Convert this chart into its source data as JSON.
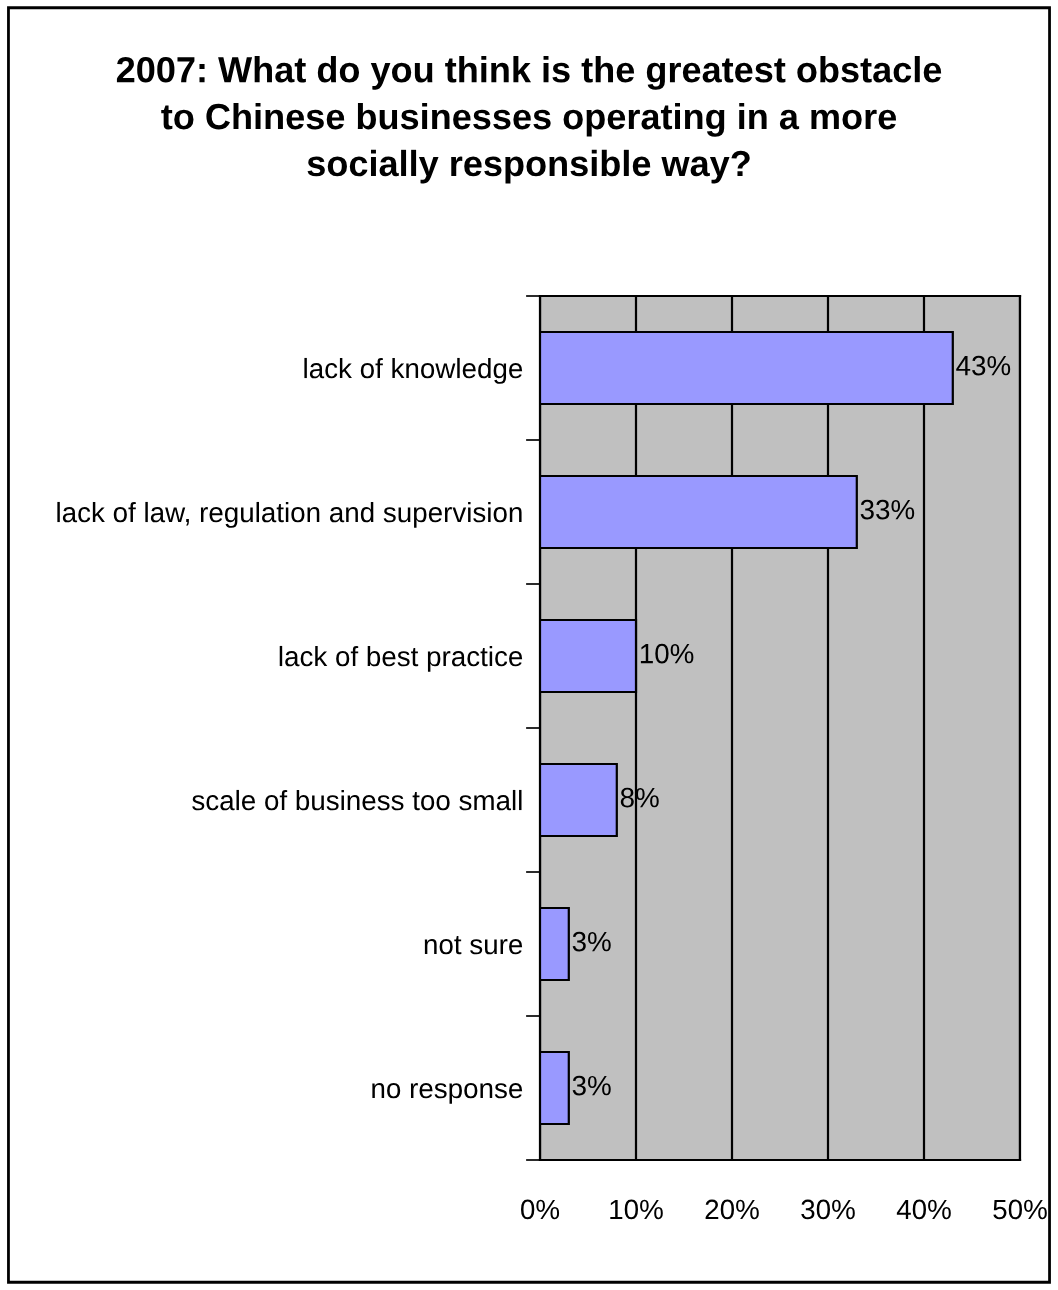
{
  "chart_data": {
    "type": "bar",
    "orientation": "horizontal",
    "title": "2007: What do you think is the greatest obstacle\nto Chinese businesses operating in a more\nsocially responsible way?",
    "categories": [
      "lack of knowledge",
      "lack of law, regulation and supervision",
      "lack of best practice",
      "scale of business too small",
      "not sure",
      "no response"
    ],
    "values": [
      43,
      33,
      10,
      8,
      3,
      3
    ],
    "value_labels": [
      "43%",
      "33%",
      "10%",
      "8%",
      "3%",
      "3%"
    ],
    "color": "#9999ff",
    "xlim": [
      0,
      50
    ],
    "xticks": [
      {
        "value": 0,
        "label": "0%"
      },
      {
        "value": 10,
        "label": "10%"
      },
      {
        "value": 20,
        "label": "20%"
      },
      {
        "value": 30,
        "label": "30%"
      },
      {
        "value": 40,
        "label": "40%"
      },
      {
        "value": 50,
        "label": "50%"
      }
    ],
    "grid": "x"
  }
}
